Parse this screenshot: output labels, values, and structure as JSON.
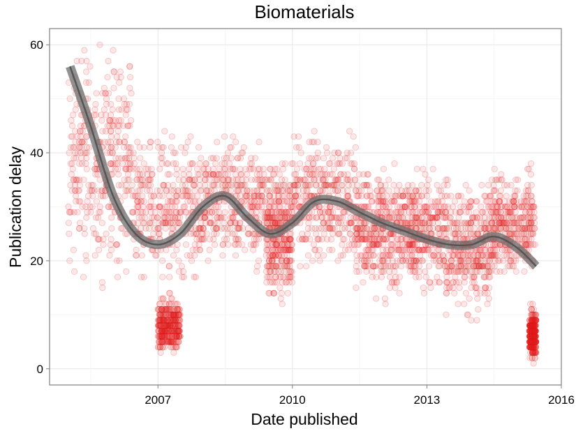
{
  "chart_data": {
    "type": "scatter",
    "title": "Biomaterials",
    "xlabel": "Date published",
    "ylabel": "Publication delay",
    "x_ticks": [
      "2007",
      "2010",
      "2013",
      "2016"
    ],
    "y_ticks": [
      "0",
      "20",
      "40",
      "60"
    ],
    "xlim": [
      "2004-08-01",
      "2016-01-01"
    ],
    "ylim": [
      -3,
      63
    ],
    "grid": true,
    "point_color": "#e41a1c",
    "smooth_color": "#6e6e6e",
    "points_approx_count": 4000,
    "smooth_line": {
      "x": [
        "2005-01-15",
        "2005-07-01",
        "2006-01-01",
        "2006-07-01",
        "2007-01-01",
        "2007-07-01",
        "2008-01-01",
        "2008-07-01",
        "2009-01-01",
        "2009-07-01",
        "2010-01-01",
        "2010-07-01",
        "2011-01-01",
        "2011-07-01",
        "2012-01-01",
        "2012-07-01",
        "2013-01-01",
        "2013-07-01",
        "2014-01-01",
        "2014-07-01",
        "2015-01-01",
        "2015-06-10"
      ],
      "y": [
        56,
        45,
        32,
        25,
        23,
        25,
        30,
        32,
        28,
        25,
        27,
        31,
        31,
        29,
        27,
        25.5,
        24,
        23,
        23,
        24.5,
        22.5,
        19
      ]
    },
    "clusters": [
      {
        "x": [
          "2005-01-01",
          "2006-06-01"
        ],
        "y": [
          14,
          63
        ]
      },
      {
        "x": [
          "2006-06-01",
          "2008-01-01"
        ],
        "y": [
          14,
          45
        ]
      },
      {
        "x": [
          "2007-01-01",
          "2007-07-01"
        ],
        "y": [
          2,
          14
        ]
      },
      {
        "x": [
          "2008-01-01",
          "2009-06-01"
        ],
        "y": [
          17,
          45
        ]
      },
      {
        "x": [
          "2009-06-01",
          "2010-01-01"
        ],
        "y": [
          11,
          40
        ]
      },
      {
        "x": [
          "2010-01-01",
          "2011-06-01"
        ],
        "y": [
          17,
          45
        ]
      },
      {
        "x": [
          "2011-06-01",
          "2012-06-01"
        ],
        "y": [
          11,
          40
        ]
      },
      {
        "x": [
          "2012-06-01",
          "2013-06-01"
        ],
        "y": [
          13,
          38
        ]
      },
      {
        "x": [
          "2013-06-01",
          "2014-06-01"
        ],
        "y": [
          9,
          36
        ]
      },
      {
        "x": [
          "2014-06-01",
          "2015-06-01"
        ],
        "y": [
          15,
          38
        ]
      },
      {
        "x": [
          "2015-04-15",
          "2015-06-10"
        ],
        "y": [
          1,
          12
        ]
      }
    ]
  }
}
